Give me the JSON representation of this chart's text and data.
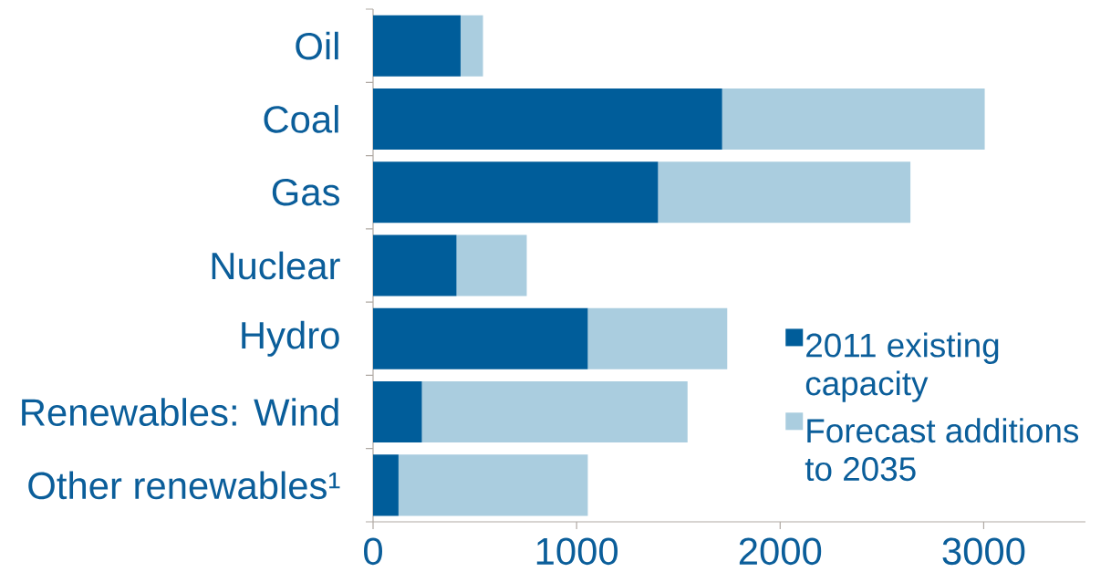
{
  "chart_data": {
    "type": "bar",
    "orientation": "horizontal",
    "stacked": true,
    "categories": [
      "Oil",
      "Coal",
      "Gas",
      "Nuclear",
      "Hydro",
      "Renewables: Wind",
      "Other renewables¹"
    ],
    "series": [
      {
        "name": "2011 existing capacity",
        "color": "#005d9a",
        "values": [
          430,
          1715,
          1400,
          410,
          1055,
          240,
          125
        ]
      },
      {
        "name": "Forecast additions to 2035",
        "color": "#aacddf",
        "values": [
          110,
          1290,
          1240,
          345,
          685,
          1305,
          930
        ]
      }
    ],
    "xlim": [
      0,
      3500
    ],
    "xticks": [
      0,
      1000,
      2000,
      3000
    ],
    "legend": "bottom right",
    "grid": false
  }
}
